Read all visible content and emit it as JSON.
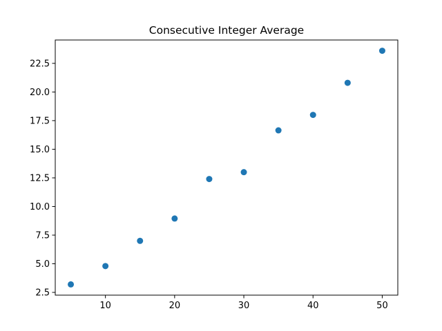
{
  "chart_data": {
    "type": "scatter",
    "title": "Consecutive Integer Average",
    "xlabel": "",
    "ylabel": "",
    "x": [
      5,
      10,
      15,
      20,
      25,
      30,
      35,
      40,
      45,
      50
    ],
    "y": [
      3.2,
      4.8,
      7.0,
      8.95,
      12.4,
      13.0,
      16.65,
      18.0,
      20.8,
      23.6
    ],
    "xlim": [
      2.75,
      52.25
    ],
    "ylim": [
      2.26,
      24.54
    ],
    "xticks": [
      10,
      20,
      30,
      40,
      50
    ],
    "xtick_labels": [
      "10",
      "20",
      "30",
      "40",
      "50"
    ],
    "yticks": [
      2.5,
      5.0,
      7.5,
      10.0,
      12.5,
      15.0,
      17.5,
      20.0,
      22.5
    ],
    "ytick_labels": [
      "2.5",
      "5.0",
      "7.5",
      "10.0",
      "12.5",
      "15.0",
      "17.5",
      "20.0",
      "22.5"
    ],
    "grid": false,
    "marker_color": "#1f77b4"
  }
}
